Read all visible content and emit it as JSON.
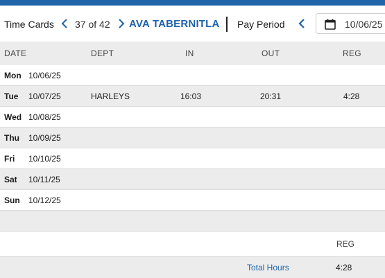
{
  "header": {
    "title": "Time Cards",
    "record_counter": "37 of 42",
    "employee_name": "AVA TABERNITLA",
    "pay_period_label": "Pay Period",
    "pay_period_start": "10/06/25"
  },
  "columns": {
    "date": "DATE",
    "dept": "DEPT",
    "in": "IN",
    "out": "OUT",
    "reg": "REG"
  },
  "rows": [
    {
      "day": "Mon",
      "date": "10/06/25",
      "dept": "",
      "in": "",
      "out": "",
      "reg": ""
    },
    {
      "day": "Tue",
      "date": "10/07/25",
      "dept": "HARLEYS",
      "in": "16:03",
      "out": "20:31",
      "reg": "4:28"
    },
    {
      "day": "Wed",
      "date": "10/08/25",
      "dept": "",
      "in": "",
      "out": "",
      "reg": ""
    },
    {
      "day": "Thu",
      "date": "10/09/25",
      "dept": "",
      "in": "",
      "out": "",
      "reg": ""
    },
    {
      "day": "Fri",
      "date": "10/10/25",
      "dept": "",
      "in": "",
      "out": "",
      "reg": ""
    },
    {
      "day": "Sat",
      "date": "10/11/25",
      "dept": "",
      "in": "",
      "out": "",
      "reg": ""
    },
    {
      "day": "Sun",
      "date": "10/12/25",
      "dept": "",
      "in": "",
      "out": "",
      "reg": ""
    }
  ],
  "summary": {
    "reg_header": "REG",
    "total_label": "Total Hours",
    "total_reg": "4:28"
  },
  "icons": {
    "prev": "chevron-left-icon",
    "next": "chevron-right-icon",
    "pay_period_prev": "chevron-left-icon",
    "calendar": "calendar-icon"
  },
  "colors": {
    "accent": "#1f63a8",
    "row_alt": "#ececec"
  }
}
